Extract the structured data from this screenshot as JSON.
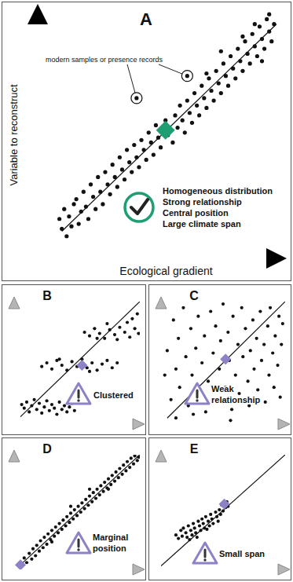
{
  "chart_data": [
    {
      "type": "scatter",
      "title": "A",
      "x_label": "Ecological gradient",
      "y_label": "Variable to reconstruct",
      "xlim": [
        0,
        100
      ],
      "ylim": [
        0,
        100
      ],
      "tick_labels": false,
      "color": "#111111",
      "marker": "circle",
      "x": [
        9,
        10,
        11,
        12,
        13,
        14,
        15,
        16,
        17,
        18,
        19,
        20,
        21,
        22,
        23,
        24,
        25,
        26,
        27,
        28,
        29,
        30,
        31,
        32,
        33,
        34,
        35,
        36,
        37,
        38,
        39,
        40,
        41,
        42,
        43,
        44,
        45,
        46,
        47,
        48,
        49,
        50,
        51,
        53,
        54,
        56,
        57,
        58,
        59,
        60,
        61,
        62,
        63,
        64,
        65,
        66,
        67,
        68,
        69,
        70,
        71,
        72,
        73,
        74,
        75,
        76,
        77,
        78,
        79,
        80,
        81,
        82,
        83,
        84,
        85,
        86,
        87,
        88,
        89,
        90,
        91,
        92,
        93,
        94,
        95,
        96,
        97,
        98,
        96,
        90,
        85,
        76,
        70,
        93
      ],
      "values": [
        16,
        12,
        20,
        9,
        17,
        13,
        22,
        24,
        14,
        19,
        27,
        21,
        16,
        30,
        25,
        20,
        33,
        27,
        22,
        35,
        30,
        26,
        38,
        33,
        29,
        41,
        36,
        32,
        44,
        39,
        35,
        46,
        41,
        37,
        48,
        44,
        40,
        51,
        47,
        42,
        54,
        49,
        45,
        56,
        50,
        47,
        58,
        53,
        62,
        56,
        51,
        64,
        59,
        55,
        67,
        62,
        58,
        70,
        65,
        61,
        73,
        68,
        64,
        76,
        71,
        67,
        79,
        74,
        70,
        82,
        77,
        73,
        85,
        80,
        76,
        88,
        83,
        79,
        91,
        86,
        82,
        94,
        89,
        85,
        97,
        92,
        88,
        95,
        99,
        95,
        90,
        84,
        75,
        80
      ],
      "trend": {
        "x": [
          10,
          99
        ],
        "values": [
          11,
          95
        ]
      },
      "position": {
        "x": 53,
        "value": 52,
        "color": "#1f9e73",
        "marker": "diamond"
      },
      "highlighted": {
        "label": "modern samples or presence records",
        "x": [
          62,
          41
        ],
        "values": [
          74,
          65
        ]
      },
      "annotation": [
        "Homogeneous distribution",
        "Strong relationship",
        "Central position",
        "Large climate span"
      ]
    },
    {
      "type": "scatter",
      "title": "B",
      "xlim": [
        0,
        100
      ],
      "ylim": [
        0,
        100
      ],
      "tick_labels": false,
      "color": "#111111",
      "marker": "circle",
      "x": [
        6,
        8,
        10,
        12,
        14,
        16,
        18,
        20,
        22,
        24,
        26,
        28,
        30,
        32,
        34,
        36,
        38,
        40,
        42,
        44,
        46,
        48,
        22,
        26,
        30,
        34,
        38,
        42,
        46,
        50,
        54,
        58,
        62,
        66,
        70,
        74,
        78,
        82,
        36,
        60,
        56,
        60,
        64,
        68,
        72,
        76,
        80,
        84,
        88,
        92,
        96,
        99,
        66,
        82,
        94,
        98,
        90,
        74
      ],
      "values": [
        16,
        13,
        18,
        10,
        15,
        20,
        12,
        17,
        9,
        14,
        19,
        11,
        16,
        13,
        8,
        18,
        12,
        15,
        10,
        14,
        17,
        11,
        47,
        50,
        45,
        52,
        48,
        44,
        51,
        47,
        53,
        46,
        50,
        44,
        49,
        52,
        46,
        50,
        53,
        43,
        75,
        72,
        78,
        74,
        70,
        77,
        73,
        79,
        75,
        71,
        78,
        74,
        70,
        69,
        86,
        90,
        83,
        82
      ],
      "trend": {
        "x": [
          5,
          100
        ],
        "values": [
          6,
          100
        ]
      },
      "position": {
        "x": 54,
        "value": 48,
        "color": "#8c82c6",
        "marker": "diamond"
      },
      "annotation": [
        "Clustered"
      ]
    },
    {
      "type": "scatter",
      "title": "C",
      "xlim": [
        0,
        100
      ],
      "ylim": [
        0,
        100
      ],
      "tick_labels": false,
      "color": "#111111",
      "marker": "circle",
      "x": [
        5,
        8,
        10,
        12,
        14,
        15,
        18,
        20,
        22,
        24,
        25,
        28,
        30,
        30,
        33,
        35,
        36,
        38,
        40,
        42,
        44,
        45,
        47,
        48,
        50,
        52,
        54,
        55,
        57,
        58,
        60,
        62,
        63,
        65,
        66,
        68,
        70,
        71,
        72,
        74,
        75,
        77,
        78,
        80,
        81,
        83,
        84,
        86,
        87,
        88,
        90,
        91,
        92,
        94,
        95,
        96,
        97,
        98,
        12,
        26,
        56,
        3
      ],
      "values": [
        60,
        20,
        85,
        45,
        70,
        30,
        95,
        55,
        15,
        78,
        40,
        62,
        88,
        25,
        50,
        72,
        10,
        35,
        92,
        58,
        80,
        20,
        45,
        68,
        98,
        30,
        75,
        52,
        12,
        88,
        40,
        65,
        25,
        95,
        55,
        78,
        35,
        15,
        60,
        85,
        45,
        70,
        28,
        92,
        52,
        65,
        18,
        80,
        40,
        95,
        58,
        30,
        72,
        48,
        88,
        22,
        65,
        82,
        5,
        8,
        3,
        40
      ],
      "trend": {
        "x": [
          5,
          100
        ],
        "values": [
          5,
          100
        ]
      },
      "position": {
        "x": 52,
        "value": 53,
        "color": "#8c82c6",
        "marker": "diamond"
      },
      "annotation": [
        "Weak",
        "relationship"
      ]
    },
    {
      "type": "scatter",
      "title": "D",
      "xlim": [
        0,
        100
      ],
      "ylim": [
        0,
        100
      ],
      "tick_labels": false,
      "color": "#111111",
      "marker": "circle",
      "x": [
        8,
        10,
        12,
        14,
        15,
        17,
        18,
        20,
        21,
        23,
        24,
        26,
        27,
        29,
        30,
        32,
        33,
        35,
        36,
        38,
        39,
        41,
        42,
        44,
        45,
        47,
        48,
        50,
        51,
        53,
        54,
        56,
        57,
        59,
        60,
        62,
        63,
        65,
        66,
        68,
        69,
        71,
        72,
        74,
        75,
        77,
        78,
        80,
        81,
        83,
        84,
        86,
        87,
        89,
        90,
        92,
        93,
        95,
        96,
        98,
        99,
        60,
        45,
        30,
        75
      ],
      "values": [
        10,
        6,
        14,
        9,
        18,
        12,
        21,
        16,
        25,
        19,
        28,
        22,
        31,
        26,
        34,
        29,
        37,
        32,
        40,
        35,
        43,
        38,
        46,
        41,
        49,
        44,
        52,
        47,
        55,
        50,
        58,
        53,
        61,
        56,
        64,
        59,
        67,
        62,
        70,
        65,
        73,
        68,
        76,
        71,
        79,
        74,
        82,
        77,
        85,
        80,
        88,
        83,
        91,
        86,
        94,
        89,
        97,
        92,
        99,
        95,
        98,
        70,
        55,
        24,
        70
      ],
      "trend": {
        "x": [
          3,
          100
        ],
        "values": [
          2,
          100
        ]
      },
      "position": {
        "x": 5,
        "value": 4,
        "color": "#8c82c6",
        "marker": "diamond"
      },
      "annotation": [
        "Marginal",
        "position"
      ]
    },
    {
      "type": "scatter",
      "title": "E",
      "xlim": [
        0,
        100
      ],
      "ylim": [
        0,
        100
      ],
      "tick_labels": false,
      "color": "#111111",
      "marker": "circle",
      "x": [
        12,
        14,
        16,
        17,
        18,
        20,
        21,
        22,
        24,
        25,
        26,
        27,
        28,
        30,
        31,
        32,
        33,
        34,
        35,
        36,
        38,
        39,
        40,
        41,
        42,
        44,
        45,
        46,
        47,
        48,
        49,
        50,
        52,
        53,
        54,
        23,
        29,
        37
      ],
      "values": [
        30,
        27,
        34,
        29,
        36,
        32,
        28,
        38,
        34,
        30,
        40,
        36,
        32,
        42,
        38,
        34,
        44,
        40,
        36,
        46,
        42,
        38,
        48,
        44,
        40,
        50,
        46,
        42,
        52,
        48,
        56,
        51,
        54,
        59,
        55,
        26,
        28,
        35
      ],
      "trend": {
        "x": [
          0,
          100
        ],
        "values": [
          3,
          100
        ]
      },
      "position": {
        "x": 51,
        "value": 57,
        "color": "#8c82c6",
        "marker": "diamond"
      },
      "annotation": [
        "Small span"
      ]
    }
  ]
}
